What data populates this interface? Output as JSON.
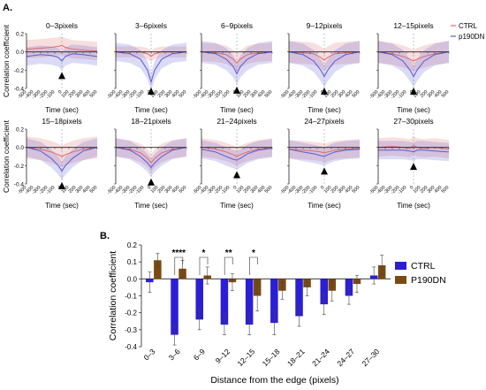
{
  "figure": {
    "panel_label_a": "A.",
    "panel_label_b": "B."
  },
  "chart_data": [
    {
      "type": "line",
      "panel": "A",
      "x_tick_labels": [
        "-500",
        "-400",
        "-300",
        "-200",
        "-100",
        "0",
        "100",
        "200",
        "300",
        "400",
        "500"
      ],
      "xlabel": "Time (sec)",
      "ylabel": "Correlation coefficient",
      "y_ticks": [
        "0.2",
        "0.0",
        "-0.2",
        "-0.4"
      ],
      "xlim": [
        -500,
        500
      ],
      "ylim": [
        -0.4,
        0.2
      ],
      "legend": [
        "CTRL",
        "p190DN"
      ],
      "legend_position": "right of first row",
      "colors": {
        "CTRL": "#e06a6a",
        "p190DN": "#5a5ad8"
      },
      "note_x": [
        -500,
        -300,
        -150,
        -50,
        0,
        50,
        150,
        300,
        500
      ],
      "subplots": [
        {
          "title": "0–3pixels",
          "series": [
            {
              "name": "CTRL",
              "values": [
                0.03,
                0.04,
                0.05,
                0.06,
                0.07,
                0.05,
                0.03,
                0.02,
                0.01
              ],
              "band": 0.1
            },
            {
              "name": "p190DN",
              "values": [
                -0.05,
                -0.03,
                -0.04,
                -0.06,
                -0.1,
                -0.05,
                -0.02,
                -0.03,
                -0.05
              ],
              "band": 0.1
            }
          ]
        },
        {
          "title": "3–6pixels",
          "series": [
            {
              "name": "CTRL",
              "values": [
                0.0,
                0.0,
                0.0,
                -0.02,
                -0.05,
                -0.02,
                0.0,
                0.0,
                0.0
              ],
              "band": 0.06
            },
            {
              "name": "p190DN",
              "values": [
                0.0,
                -0.02,
                -0.08,
                -0.2,
                -0.33,
                -0.2,
                -0.08,
                -0.02,
                0.0
              ],
              "band": 0.1
            }
          ]
        },
        {
          "title": "6–9pixels",
          "series": [
            {
              "name": "CTRL",
              "values": [
                0.0,
                -0.01,
                -0.03,
                -0.08,
                -0.12,
                -0.08,
                -0.03,
                -0.01,
                0.0
              ],
              "band": 0.1
            },
            {
              "name": "p190DN",
              "values": [
                0.0,
                -0.02,
                -0.08,
                -0.16,
                -0.24,
                -0.16,
                -0.08,
                -0.02,
                0.0
              ],
              "band": 0.12
            }
          ]
        },
        {
          "title": "9–12pixels",
          "series": [
            {
              "name": "CTRL",
              "values": [
                0.0,
                -0.01,
                -0.02,
                -0.06,
                -0.09,
                -0.06,
                -0.02,
                -0.01,
                0.0
              ],
              "band": 0.12
            },
            {
              "name": "p190DN",
              "values": [
                0.0,
                -0.03,
                -0.1,
                -0.2,
                -0.27,
                -0.2,
                -0.1,
                -0.03,
                0.0
              ],
              "band": 0.12
            }
          ]
        },
        {
          "title": "12–15pixels",
          "series": [
            {
              "name": "CTRL",
              "values": [
                0.0,
                -0.02,
                -0.05,
                -0.08,
                -0.1,
                -0.08,
                -0.05,
                -0.02,
                0.0
              ],
              "band": 0.12
            },
            {
              "name": "p190DN",
              "values": [
                0.0,
                -0.03,
                -0.1,
                -0.2,
                -0.27,
                -0.2,
                -0.1,
                -0.03,
                0.0
              ],
              "band": 0.12
            }
          ]
        },
        {
          "title": "15–18pixels",
          "series": [
            {
              "name": "CTRL",
              "values": [
                0.0,
                -0.02,
                -0.05,
                -0.08,
                -0.1,
                -0.08,
                -0.05,
                -0.02,
                0.0
              ],
              "band": 0.12
            },
            {
              "name": "p190DN",
              "values": [
                0.0,
                -0.04,
                -0.12,
                -0.2,
                -0.26,
                -0.2,
                -0.12,
                -0.04,
                0.0
              ],
              "band": 0.1
            }
          ]
        },
        {
          "title": "18–21pixels",
          "series": [
            {
              "name": "CTRL",
              "values": [
                0.0,
                -0.02,
                -0.06,
                -0.12,
                -0.17,
                -0.12,
                -0.06,
                -0.02,
                0.0
              ],
              "band": 0.1
            },
            {
              "name": "p190DN",
              "values": [
                0.0,
                -0.03,
                -0.1,
                -0.17,
                -0.22,
                -0.17,
                -0.1,
                -0.03,
                0.0
              ],
              "band": 0.1
            }
          ]
        },
        {
          "title": "21–24pixels",
          "series": [
            {
              "name": "CTRL",
              "values": [
                0.0,
                -0.02,
                -0.05,
                -0.08,
                -0.1,
                -0.08,
                -0.05,
                -0.02,
                0.0
              ],
              "band": 0.1
            },
            {
              "name": "p190DN",
              "values": [
                -0.02,
                -0.05,
                -0.1,
                -0.13,
                -0.14,
                -0.12,
                -0.07,
                -0.03,
                -0.01
              ],
              "band": 0.1
            }
          ]
        },
        {
          "title": "24–27pixels",
          "series": [
            {
              "name": "CTRL",
              "values": [
                -0.02,
                -0.03,
                -0.04,
                -0.05,
                -0.06,
                -0.05,
                -0.03,
                -0.02,
                -0.01
              ],
              "band": 0.1
            },
            {
              "name": "p190DN",
              "values": [
                -0.02,
                -0.05,
                -0.07,
                -0.09,
                -0.1,
                -0.08,
                -0.05,
                -0.03,
                -0.02
              ],
              "band": 0.1
            }
          ]
        },
        {
          "title": "27–30pixels",
          "series": [
            {
              "name": "CTRL",
              "values": [
                0.0,
                0.01,
                0.0,
                -0.01,
                0.02,
                0.0,
                -0.01,
                0.0,
                -0.02
              ],
              "band": 0.1
            },
            {
              "name": "p190DN",
              "values": [
                -0.03,
                -0.03,
                -0.03,
                -0.04,
                -0.05,
                -0.03,
                -0.03,
                -0.04,
                -0.05
              ],
              "band": 0.1
            }
          ]
        }
      ]
    },
    {
      "type": "bar",
      "panel": "B",
      "categories": [
        "0–3",
        "3–6",
        "6–9",
        "9–12",
        "12–15",
        "15–18",
        "18–21",
        "21–24",
        "24–27",
        "27–30"
      ],
      "series": [
        {
          "name": "CTRL",
          "values": [
            -0.02,
            -0.33,
            -0.24,
            -0.27,
            -0.27,
            -0.26,
            -0.22,
            -0.15,
            -0.1,
            0.02
          ],
          "errors": [
            0.06,
            0.06,
            0.06,
            0.06,
            0.06,
            0.07,
            0.06,
            0.06,
            0.05,
            0.05
          ],
          "color": "#2b1fd6"
        },
        {
          "name": "P190DN",
          "values": [
            0.11,
            0.06,
            0.02,
            -0.02,
            -0.1,
            -0.07,
            -0.05,
            -0.07,
            -0.03,
            0.08
          ],
          "errors": [
            0.04,
            0.05,
            0.05,
            0.05,
            0.09,
            0.05,
            0.05,
            0.06,
            0.05,
            0.06
          ],
          "color": "#7a4a12"
        }
      ],
      "significance": [
        {
          "category": "3–6",
          "label": "****"
        },
        {
          "category": "6–9",
          "label": "*"
        },
        {
          "category": "9–12",
          "label": "**"
        },
        {
          "category": "12–15",
          "label": "*"
        }
      ],
      "xlabel": "Distance from the edge (pixels)",
      "ylabel": "Correlation coefficient",
      "y_ticks": [
        "0.2",
        "0.1",
        "0.0",
        "-0.1",
        "-0.2",
        "-0.3",
        "-0.4"
      ],
      "ylim": [
        -0.4,
        0.2
      ],
      "legend_position": "right"
    }
  ]
}
